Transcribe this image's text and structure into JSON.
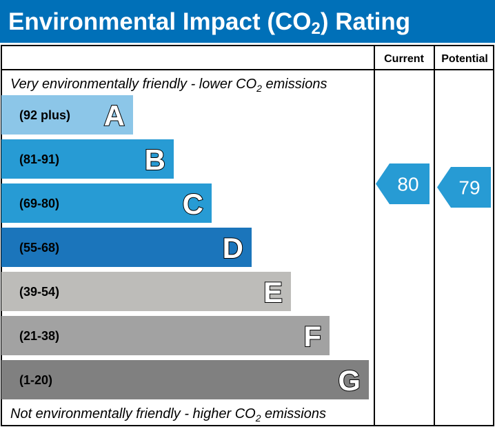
{
  "header": {
    "title_pre": "Environmental Impact (CO",
    "title_sub": "2",
    "title_post": ") Rating",
    "color": "#0070b8"
  },
  "columns": {
    "current": "Current",
    "potential": "Potential"
  },
  "captions": {
    "top_pre": "Very environmentally friendly - lower CO",
    "top_sub": "2",
    "top_post": " emissions",
    "bottom_pre": "Not environmentally friendly - higher CO",
    "bottom_sub": "2",
    "bottom_post": " emissions"
  },
  "chart_data": {
    "type": "bar",
    "categories": [
      "A",
      "B",
      "C",
      "D",
      "E",
      "F",
      "G"
    ],
    "bands": [
      {
        "letter": "A",
        "range": "(92 plus)",
        "color": "#8cc6e8"
      },
      {
        "letter": "B",
        "range": "(81-91)",
        "color": "#279bd4"
      },
      {
        "letter": "C",
        "range": "(69-80)",
        "color": "#279bd4"
      },
      {
        "letter": "D",
        "range": "(55-68)",
        "color": "#1b75bb"
      },
      {
        "letter": "E",
        "range": "(39-54)",
        "color": "#bdbcb9"
      },
      {
        "letter": "F",
        "range": "(21-38)",
        "color": "#a2a2a2"
      },
      {
        "letter": "G",
        "range": "(1-20)",
        "color": "#808080"
      }
    ],
    "current": {
      "value": 80,
      "band": "C",
      "color": "#279bd4"
    },
    "potential": {
      "value": 79,
      "band": "C",
      "color": "#279bd4"
    }
  }
}
